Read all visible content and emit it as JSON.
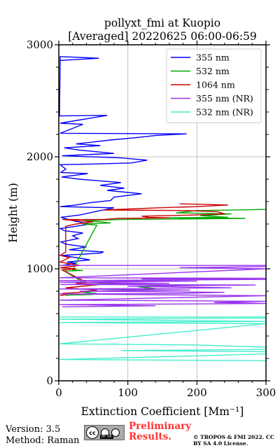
{
  "chart_data": {
    "type": "line",
    "title": "pollyxt_fmi at Kuopio",
    "subtitle": "[Averaged] 20220625 06:00-06:59",
    "xlabel": "Extinction Coefficient [Mm⁻¹]",
    "ylabel": "Height (m)",
    "xlim": [
      0,
      300
    ],
    "ylim": [
      0,
      3000
    ],
    "xticks": [
      0,
      100,
      200,
      300
    ],
    "yticks": [
      0,
      1000,
      2000,
      3000
    ],
    "grid": true,
    "legend_position": "top-right",
    "series": [
      {
        "name": "355 nm",
        "color": "#0000ff",
        "points": [
          [
            1,
            2860
          ],
          [
            58,
            2880
          ],
          [
            2,
            2895
          ],
          [
            1,
            2365
          ],
          [
            70,
            2370
          ],
          [
            2,
            2300
          ],
          [
            35,
            2290
          ],
          [
            2,
            2210
          ],
          [
            185,
            2205
          ],
          [
            140,
            2190
          ],
          [
            110,
            2170
          ],
          [
            75,
            2150
          ],
          [
            25,
            2115
          ],
          [
            60,
            2100
          ],
          [
            8,
            2080
          ],
          [
            30,
            2060
          ],
          [
            80,
            2030
          ],
          [
            5,
            2010
          ],
          [
            90,
            1990
          ],
          [
            128,
            1970
          ],
          [
            105,
            1945
          ],
          [
            45,
            1935
          ],
          [
            2,
            1930
          ],
          [
            10,
            1890
          ],
          [
            3,
            1860
          ],
          [
            42,
            1850
          ],
          [
            4,
            1820
          ],
          [
            30,
            1800
          ],
          [
            90,
            1770
          ],
          [
            60,
            1745
          ],
          [
            95,
            1720
          ],
          [
            70,
            1700
          ],
          [
            120,
            1670
          ],
          [
            80,
            1640
          ],
          [
            75,
            1610
          ],
          [
            45,
            1590
          ],
          [
            25,
            1570
          ],
          [
            2,
            1555
          ],
          [
            80,
            1545
          ],
          [
            60,
            1520
          ],
          [
            30,
            1480
          ],
          [
            3,
            1460
          ],
          [
            20,
            1430
          ],
          [
            45,
            1400
          ],
          [
            25,
            1380
          ],
          [
            2,
            1360
          ],
          [
            8,
            1340
          ],
          [
            35,
            1320
          ],
          [
            20,
            1295
          ],
          [
            28,
            1270
          ],
          [
            3,
            1240
          ],
          [
            10,
            1220
          ],
          [
            40,
            1195
          ],
          [
            15,
            1170
          ],
          [
            65,
            1150
          ],
          [
            60,
            1140
          ],
          [
            5,
            1120
          ],
          [
            25,
            1100
          ],
          [
            45,
            1080
          ],
          [
            12,
            1060
          ],
          [
            25,
            1050
          ],
          [
            5,
            1030
          ]
        ]
      },
      {
        "name": "532 nm",
        "color": "#00aa00",
        "points": [
          [
            300,
            1530
          ],
          [
            200,
            1520
          ],
          [
            170,
            1500
          ],
          [
            250,
            1490
          ],
          [
            205,
            1475
          ],
          [
            245,
            1460
          ],
          [
            155,
            1455
          ],
          [
            270,
            1450
          ],
          [
            90,
            1440
          ],
          [
            35,
            1430
          ],
          [
            60,
            1420
          ],
          [
            75,
            1410
          ],
          [
            35,
            1400
          ],
          [
            55,
            1390
          ],
          [
            20,
            990
          ],
          [
            35,
            985
          ],
          [
            8,
            980
          ],
          [
            35,
            880
          ],
          [
            110,
            860
          ],
          [
            170,
            850
          ],
          [
            115,
            840
          ],
          [
            140,
            825
          ],
          [
            110,
            810
          ],
          [
            50,
            800
          ],
          [
            35,
            790
          ],
          [
            55,
            780
          ],
          [
            48,
            770
          ],
          [
            15,
            765
          ],
          [
            10,
            760
          ]
        ]
      },
      {
        "name": "1064 nm",
        "color": "#cc0000",
        "points": [
          [
            175,
            1580
          ],
          [
            245,
            1570
          ],
          [
            200,
            1555
          ],
          [
            145,
            1545
          ],
          [
            65,
            1525
          ],
          [
            185,
            1520
          ],
          [
            230,
            1510
          ],
          [
            240,
            1490
          ],
          [
            195,
            1480
          ],
          [
            120,
            1470
          ],
          [
            130,
            1460
          ],
          [
            160,
            1455
          ],
          [
            85,
            1450
          ],
          [
            65,
            1440
          ],
          [
            5,
            1440
          ],
          [
            50,
            1420
          ],
          [
            25,
            1400
          ],
          [
            10,
            1380
          ],
          [
            10,
            1150
          ],
          [
            2,
            1120
          ],
          [
            15,
            1100
          ],
          [
            2,
            1060
          ],
          [
            30,
            1030
          ],
          [
            2,
            1010
          ],
          [
            25,
            1000
          ],
          [
            5,
            990
          ],
          [
            40,
            880
          ],
          [
            25,
            870
          ],
          [
            60,
            860
          ],
          [
            10,
            830
          ],
          [
            55,
            810
          ],
          [
            40,
            800
          ],
          [
            30,
            790
          ],
          [
            5,
            780
          ],
          [
            10,
            770
          ],
          [
            2,
            760
          ]
        ]
      },
      {
        "name": "355 nm (NR)",
        "color": "#9933ee",
        "points": [
          [
            1,
            1030
          ],
          [
            300,
            1030
          ],
          [
            300,
            1020
          ],
          [
            175,
            1010
          ],
          [
            300,
            1000
          ],
          [
            1,
            920
          ],
          [
            300,
            915
          ],
          [
            120,
            910
          ],
          [
            300,
            905
          ],
          [
            1,
            895
          ],
          [
            200,
            890
          ],
          [
            1,
            880
          ],
          [
            160,
            870
          ],
          [
            2,
            860
          ],
          [
            285,
            855
          ],
          [
            100,
            845
          ],
          [
            250,
            830
          ],
          [
            1,
            820
          ],
          [
            190,
            810
          ],
          [
            30,
            800
          ],
          [
            240,
            790
          ],
          [
            175,
            780
          ],
          [
            1,
            775
          ],
          [
            300,
            760
          ],
          [
            1,
            720
          ],
          [
            300,
            710
          ],
          [
            225,
            700
          ],
          [
            300,
            690
          ],
          [
            1,
            680
          ],
          [
            140,
            670
          ],
          [
            5,
            660
          ]
        ]
      },
      {
        "name": "532 nm (NR)",
        "color": "#44eecc",
        "points": [
          [
            1,
            570
          ],
          [
            300,
            570
          ],
          [
            300,
            560
          ],
          [
            1,
            550
          ],
          [
            300,
            530
          ],
          [
            1,
            520
          ],
          [
            300,
            510
          ],
          [
            1,
            330
          ],
          [
            200,
            320
          ],
          [
            300,
            300
          ],
          [
            300,
            280
          ],
          [
            90,
            270
          ],
          [
            300,
            260
          ],
          [
            300,
            240
          ],
          [
            1,
            190
          ],
          [
            300,
            180
          ]
        ]
      }
    ]
  },
  "footer": {
    "version": "Version: 3.5",
    "method": "Method: Raman",
    "preliminary": "Preliminary Results.",
    "copyright": "© TROPOS & FMI 2022. CC BY SA 4.0 License."
  }
}
